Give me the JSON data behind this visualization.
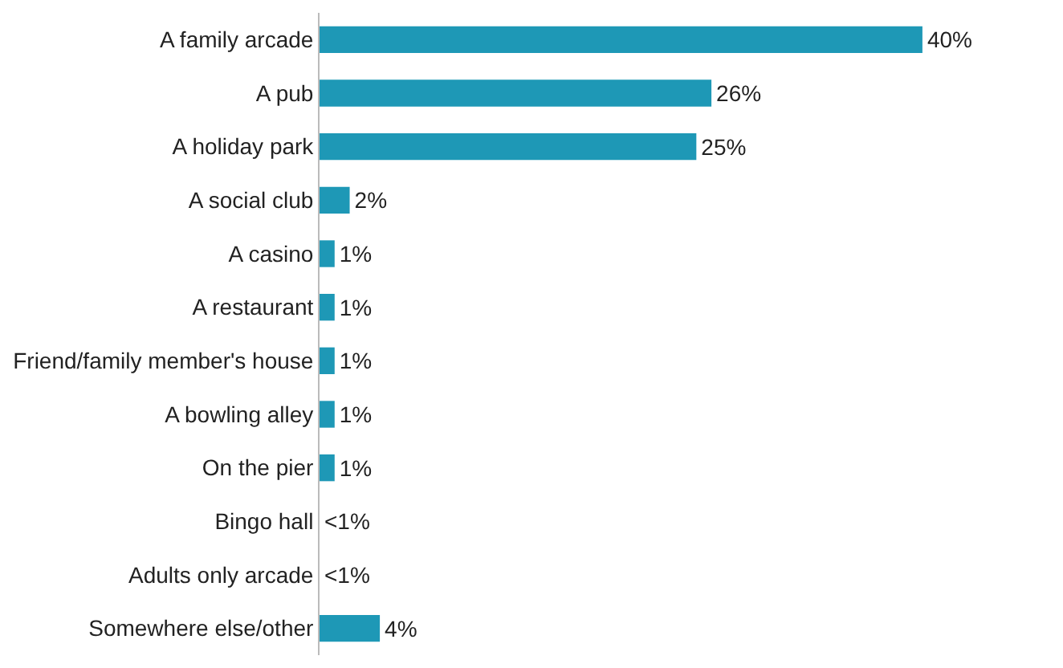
{
  "chart_data": {
    "type": "bar",
    "orientation": "horizontal",
    "categories": [
      "A family arcade",
      "A pub",
      "A holiday park",
      "A social club",
      "A casino",
      "A restaurant",
      "Friend/family member's house",
      "A bowling alley",
      "On the pier",
      "Bingo hall",
      "Adults only arcade",
      "Somewhere else/other"
    ],
    "values": [
      40,
      26,
      25,
      2,
      1,
      1,
      1,
      1,
      1,
      0,
      0,
      4
    ],
    "value_labels": [
      "40%",
      "26%",
      "25%",
      "2%",
      "1%",
      "1%",
      "1%",
      "1%",
      "1%",
      "<1%",
      "<1%",
      "4%"
    ],
    "color": "#1e98b6"
  }
}
